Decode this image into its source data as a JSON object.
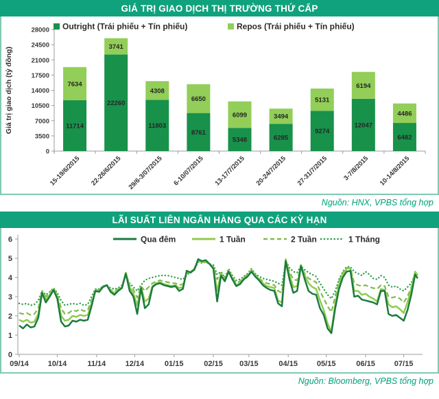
{
  "theme": {
    "title_bar_bg": "#10A27C",
    "title_text_color": "#FFFFFF",
    "panel_border": "#7FC9B0",
    "source_text_color": "#00A07C",
    "axis_text_color": "#383838"
  },
  "chart_data": [
    {
      "type": "bar",
      "stacked": true,
      "title": "GIÁ TRỊ GIAO DỊCH THỊ TRƯỜNG THỨ CẤP",
      "ylabel": "Giá trị giao dịch (tỷ đồng)",
      "ylim": [
        0,
        28000
      ],
      "ytick_step": 3500,
      "grid": false,
      "legend_position": "top",
      "categories": [
        "15-19/6/2015",
        "22-26/6/2015",
        "29/6-3/07/2015",
        "6-10/07/2015",
        "13-17/7/2015",
        "20-24/7/2015",
        "27-31/7/2015",
        "3-7/8/2015",
        "10-14/8/2015"
      ],
      "series": [
        {
          "name": "Outright (Trái phiếu + Tín phiếu)",
          "slug": "outright",
          "color": "#18914A",
          "values": [
            11714,
            22260,
            11803,
            8761,
            5348,
            6285,
            9274,
            12047,
            6482
          ]
        },
        {
          "name": "Repos (Trái phiếu + Tín phiếu)",
          "slug": "repos",
          "color": "#92CE58",
          "values": [
            7634,
            3741,
            4308,
            6650,
            6099,
            3494,
            5131,
            6194,
            4486
          ]
        }
      ],
      "source": "Nguồn: HNX, VPBS tổng hợp"
    },
    {
      "type": "line",
      "title": "LÃI SUẤT LIÊN NGÂN HÀNG QUA CÁC KỲ HẠN",
      "ylim": [
        0,
        6
      ],
      "ytick_step": 1,
      "grid": false,
      "legend_position": "top",
      "xtick_labels": [
        "09/14",
        "10/14",
        "11/14",
        "12/14",
        "01/15",
        "02/15",
        "03/15",
        "04/15",
        "05/15",
        "06/15",
        "07/15"
      ],
      "xtick_days": [
        0,
        30,
        61,
        91,
        122,
        153,
        181,
        212,
        242,
        273,
        303
      ],
      "x_days": [
        0,
        3,
        6,
        9,
        12,
        15,
        18,
        21,
        24,
        27,
        30,
        33,
        36,
        39,
        42,
        45,
        48,
        51,
        54,
        57,
        60,
        63,
        66,
        69,
        72,
        75,
        78,
        81,
        84,
        87,
        90,
        93,
        96,
        99,
        102,
        105,
        108,
        111,
        114,
        117,
        120,
        123,
        126,
        129,
        132,
        135,
        138,
        141,
        144,
        147,
        150,
        153,
        156,
        159,
        162,
        165,
        168,
        171,
        174,
        177,
        180,
        183,
        186,
        189,
        192,
        195,
        198,
        201,
        204,
        207,
        210,
        213,
        216,
        219,
        222,
        225,
        228,
        231,
        234,
        237,
        240,
        243,
        246,
        249,
        252,
        255,
        258,
        261,
        264,
        267,
        270,
        273,
        276,
        279,
        282,
        285,
        288,
        291,
        294,
        297,
        300,
        303,
        306,
        309,
        312,
        314
      ],
      "series": [
        {
          "name": "Qua đêm",
          "slug": "overnight",
          "style": "solid",
          "color": "#1B7B3E",
          "values": [
            1.5,
            1.35,
            1.55,
            1.4,
            1.45,
            1.9,
            3.2,
            2.7,
            3.0,
            3.35,
            2.9,
            1.7,
            1.45,
            1.5,
            1.75,
            1.7,
            1.8,
            1.75,
            1.8,
            2.5,
            3.3,
            3.25,
            3.5,
            3.6,
            3.25,
            3.1,
            3.3,
            3.45,
            4.2,
            3.3,
            3.0,
            2.1,
            3.45,
            2.4,
            2.6,
            3.5,
            3.65,
            3.7,
            3.6,
            3.55,
            3.5,
            3.55,
            3.3,
            3.4,
            4.35,
            4.25,
            4.4,
            4.95,
            4.85,
            4.9,
            4.7,
            4.45,
            2.75,
            4.1,
            3.8,
            4.3,
            3.9,
            3.55,
            3.65,
            3.9,
            4.05,
            4.3,
            4.05,
            3.85,
            3.6,
            3.45,
            3.35,
            3.3,
            2.65,
            2.5,
            4.85,
            3.9,
            3.2,
            3.3,
            4.6,
            3.9,
            3.3,
            3.15,
            3.1,
            2.4,
            2.05,
            1.35,
            1.1,
            2.4,
            3.4,
            4.0,
            4.3,
            4.35,
            3.0,
            3.05,
            2.85,
            2.8,
            2.75,
            2.7,
            2.6,
            3.3,
            3.3,
            2.1,
            2.0,
            2.05,
            1.9,
            1.75,
            2.3,
            3.1,
            4.15,
            3.95
          ]
        },
        {
          "name": "1 Tuần",
          "slug": "one-week",
          "style": "solid",
          "color": "#8FCB4E",
          "values": [
            1.8,
            1.7,
            1.8,
            1.65,
            1.7,
            2.1,
            3.25,
            2.85,
            3.1,
            3.4,
            3.0,
            2.0,
            1.75,
            1.8,
            2.0,
            1.95,
            2.05,
            2.0,
            2.05,
            2.65,
            3.35,
            3.3,
            3.5,
            3.6,
            3.3,
            3.2,
            3.35,
            3.5,
            4.25,
            3.5,
            3.15,
            2.55,
            3.5,
            2.75,
            2.9,
            3.55,
            3.7,
            3.75,
            3.65,
            3.6,
            3.55,
            3.6,
            3.45,
            3.5,
            4.3,
            4.3,
            4.45,
            4.9,
            4.8,
            4.85,
            4.7,
            4.5,
            3.3,
            4.2,
            3.85,
            4.35,
            3.95,
            3.6,
            3.7,
            3.95,
            4.1,
            4.35,
            4.1,
            3.9,
            3.7,
            3.55,
            3.5,
            3.45,
            2.8,
            2.7,
            4.95,
            4.1,
            3.5,
            3.55,
            4.65,
            4.1,
            3.7,
            3.5,
            3.4,
            2.8,
            2.3,
            1.6,
            1.2,
            2.6,
            3.6,
            4.15,
            4.45,
            4.5,
            3.3,
            3.3,
            3.1,
            3.15,
            3.0,
            2.9,
            2.75,
            3.4,
            3.35,
            2.6,
            2.45,
            2.5,
            2.35,
            2.15,
            2.7,
            3.4,
            4.3,
            4.1
          ]
        },
        {
          "name": "2 Tuần",
          "slug": "two-weeks",
          "style": "dashed",
          "color": "#84B84C",
          "values": [
            2.15,
            2.1,
            2.15,
            2.05,
            2.1,
            2.4,
            3.3,
            3.0,
            3.2,
            3.45,
            3.1,
            2.4,
            2.1,
            2.15,
            2.3,
            2.25,
            2.35,
            2.25,
            2.3,
            2.8,
            3.35,
            3.35,
            3.55,
            3.6,
            3.35,
            3.3,
            3.4,
            3.55,
            4.2,
            3.6,
            3.35,
            2.95,
            3.55,
            3.3,
            3.5,
            3.7,
            3.8,
            3.85,
            3.8,
            3.75,
            3.7,
            3.7,
            3.6,
            3.65,
            4.2,
            4.3,
            4.4,
            4.85,
            4.8,
            4.8,
            4.7,
            4.55,
            3.9,
            4.25,
            3.9,
            4.4,
            4.0,
            3.7,
            3.8,
            4.0,
            4.15,
            4.4,
            4.15,
            3.95,
            3.8,
            3.7,
            3.65,
            3.6,
            3.3,
            3.2,
            4.9,
            4.3,
            3.9,
            3.85,
            4.6,
            4.2,
            3.95,
            3.85,
            3.75,
            3.3,
            2.9,
            2.5,
            2.2,
            3.0,
            3.8,
            4.25,
            4.5,
            4.5,
            3.7,
            3.6,
            3.55,
            3.6,
            3.5,
            3.45,
            3.4,
            3.6,
            3.55,
            3.0,
            2.95,
            3.0,
            2.9,
            2.7,
            3.0,
            3.5,
            4.2,
            4.1
          ]
        },
        {
          "name": "1 Tháng",
          "slug": "one-month",
          "style": "dotted",
          "color": "#2CA14D",
          "values": [
            2.65,
            2.6,
            2.65,
            2.55,
            2.6,
            2.8,
            3.3,
            3.1,
            3.25,
            3.45,
            3.2,
            2.8,
            2.55,
            2.6,
            2.65,
            2.6,
            2.65,
            2.55,
            2.6,
            3.0,
            3.4,
            3.4,
            3.55,
            3.6,
            3.45,
            3.4,
            3.45,
            3.6,
            4.1,
            3.7,
            3.5,
            3.3,
            3.6,
            3.85,
            3.95,
            4.0,
            4.05,
            4.1,
            4.1,
            4.1,
            4.05,
            4.0,
            3.95,
            3.9,
            4.1,
            4.3,
            4.4,
            4.8,
            4.75,
            4.8,
            4.7,
            4.65,
            4.15,
            4.3,
            4.0,
            4.45,
            4.1,
            3.85,
            3.9,
            4.05,
            4.2,
            4.45,
            4.2,
            4.05,
            3.95,
            3.9,
            3.85,
            3.8,
            3.7,
            3.6,
            4.85,
            4.5,
            4.3,
            4.25,
            4.6,
            4.4,
            4.25,
            4.15,
            4.05,
            3.7,
            3.4,
            3.1,
            2.9,
            3.3,
            3.9,
            4.3,
            4.55,
            4.55,
            4.3,
            4.2,
            4.1,
            4.3,
            4.15,
            3.95,
            3.9,
            4.1,
            4.0,
            3.6,
            3.5,
            3.55,
            3.4,
            3.3,
            3.5,
            3.7,
            4.2,
            4.15
          ]
        }
      ],
      "source": "Nguồn: Bloomberg, VPBS tổng hợp"
    }
  ]
}
